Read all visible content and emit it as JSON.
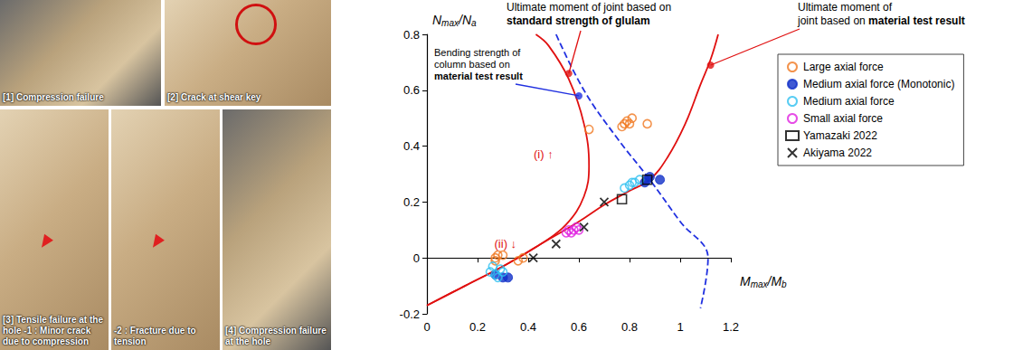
{
  "photos": [
    {
      "caption": "[1] Compression failure"
    },
    {
      "caption": "[2] Crack at shear key"
    },
    {
      "caption": "[3] Tensile failure at the hole -1 : Minor crack due to compression"
    },
    {
      "caption": "-2 : Fracture due to tension"
    },
    {
      "caption": "[4] Compression failure at the hole"
    }
  ],
  "chart_data": {
    "type": "scatter",
    "xlabel": "Mmax/Mb",
    "ylabel": "Nmax/Na",
    "xlim": [
      0,
      1.2
    ],
    "ylim": [
      -0.2,
      0.8
    ],
    "xticks": [
      0,
      0.2,
      0.4,
      0.6,
      0.8,
      1,
      1.2
    ],
    "yticks": [
      -0.2,
      0,
      0.2,
      0.4,
      0.6,
      0.8
    ],
    "grid": false,
    "legend": "right",
    "series": [
      {
        "name": "Large axial force",
        "type": "scatter",
        "color": "#f07820",
        "marker": "open_circle",
        "x": [
          0.64,
          0.77,
          0.79,
          0.81,
          0.8,
          0.78,
          0.87,
          0.27,
          0.3,
          0.27,
          0.36,
          0.38,
          0.28
        ],
        "y": [
          0.46,
          0.47,
          0.49,
          0.5,
          0.48,
          0.48,
          0.48,
          0.0,
          0.01,
          -0.01,
          -0.01,
          0.0,
          0.01
        ]
      },
      {
        "name": "Medium axial force (Monotonic)",
        "type": "scatter",
        "color": "#1030c8",
        "marker": "filled_circle",
        "x": [
          0.86,
          0.87,
          0.92,
          0.88,
          0.3,
          0.32,
          0.27
        ],
        "y": [
          0.27,
          0.28,
          0.28,
          0.29,
          -0.07,
          -0.07,
          -0.06
        ]
      },
      {
        "name": "Medium axial force",
        "type": "scatter",
        "color": "#30c0f0",
        "marker": "open_circle",
        "x": [
          0.8,
          0.82,
          0.84,
          0.78,
          0.81,
          0.25,
          0.27,
          0.29,
          0.26,
          0.3,
          0.28
        ],
        "y": [
          0.26,
          0.27,
          0.28,
          0.25,
          0.27,
          -0.05,
          -0.06,
          -0.04,
          -0.03,
          -0.05,
          -0.07
        ]
      },
      {
        "name": "Small axial force",
        "type": "scatter",
        "color": "#e020e0",
        "marker": "open_circle",
        "x": [
          0.56,
          0.58,
          0.59,
          0.57,
          0.6,
          0.55
        ],
        "y": [
          0.1,
          0.1,
          0.11,
          0.09,
          0.1,
          0.09
        ]
      },
      {
        "name": "Yamazaki 2022",
        "type": "scatter",
        "color": "#000000",
        "marker": "open_square",
        "x": [
          0.77,
          0.87
        ],
        "y": [
          0.21,
          0.28
        ]
      },
      {
        "name": "Akiyama 2022",
        "type": "scatter",
        "color": "#000000",
        "marker": "x",
        "x": [
          0.7,
          0.62,
          0.51,
          0.42
        ],
        "y": [
          0.2,
          0.11,
          0.05,
          0.0
        ]
      },
      {
        "type": "line",
        "color": "#e01010",
        "line_style": "solid",
        "x": [
          0.0,
          0.15,
          0.3,
          0.45,
          0.55,
          0.62,
          0.64,
          0.62,
          0.56,
          0.48,
          0.43
        ],
        "y": [
          -0.17,
          -0.1,
          -0.03,
          0.05,
          0.12,
          0.22,
          0.33,
          0.48,
          0.64,
          0.76,
          0.8
        ]
      },
      {
        "type": "line",
        "color": "#e01010",
        "line_style": "solid",
        "x": [
          0.0,
          0.15,
          0.3,
          0.45,
          0.6,
          0.7,
          0.8,
          0.88,
          0.95,
          1.02,
          1.08,
          1.12,
          1.15
        ],
        "y": [
          -0.17,
          -0.1,
          -0.03,
          0.05,
          0.13,
          0.19,
          0.24,
          0.28,
          0.36,
          0.48,
          0.62,
          0.71,
          0.8
        ]
      },
      {
        "type": "line",
        "color": "#2030e0",
        "line_style": "dashed",
        "x": [
          0.51,
          0.62,
          0.75,
          0.88,
          1.0,
          1.11,
          1.08
        ],
        "y": [
          0.8,
          0.6,
          0.43,
          0.28,
          0.13,
          0.0,
          -0.18
        ]
      }
    ],
    "annotations": [
      {
        "lines": [
          "Ultimate moment of joint based on",
          "standard strength of glulam"
        ],
        "emphasis": "standard strength of glulam",
        "color": "#e01010",
        "x": 0.56,
        "y": 0.66
      },
      {
        "lines": [
          "Ultimate moment of",
          "joint based on material test result"
        ],
        "emphasis": "material test result",
        "color": "#e01010",
        "x": 1.12,
        "y": 0.69
      },
      {
        "lines": [
          "Bending strength of",
          "column based on",
          "material test result"
        ],
        "emphasis": "material test result",
        "color": "#2030e0",
        "x": 0.6,
        "y": 0.58
      }
    ],
    "notes": [
      {
        "text": "(i) ↑",
        "color": "#e01010",
        "x": 0.46,
        "y": 0.37
      },
      {
        "text": "(ii) ↓",
        "color": "#e01010",
        "x": 0.31,
        "y": 0.05
      }
    ]
  }
}
